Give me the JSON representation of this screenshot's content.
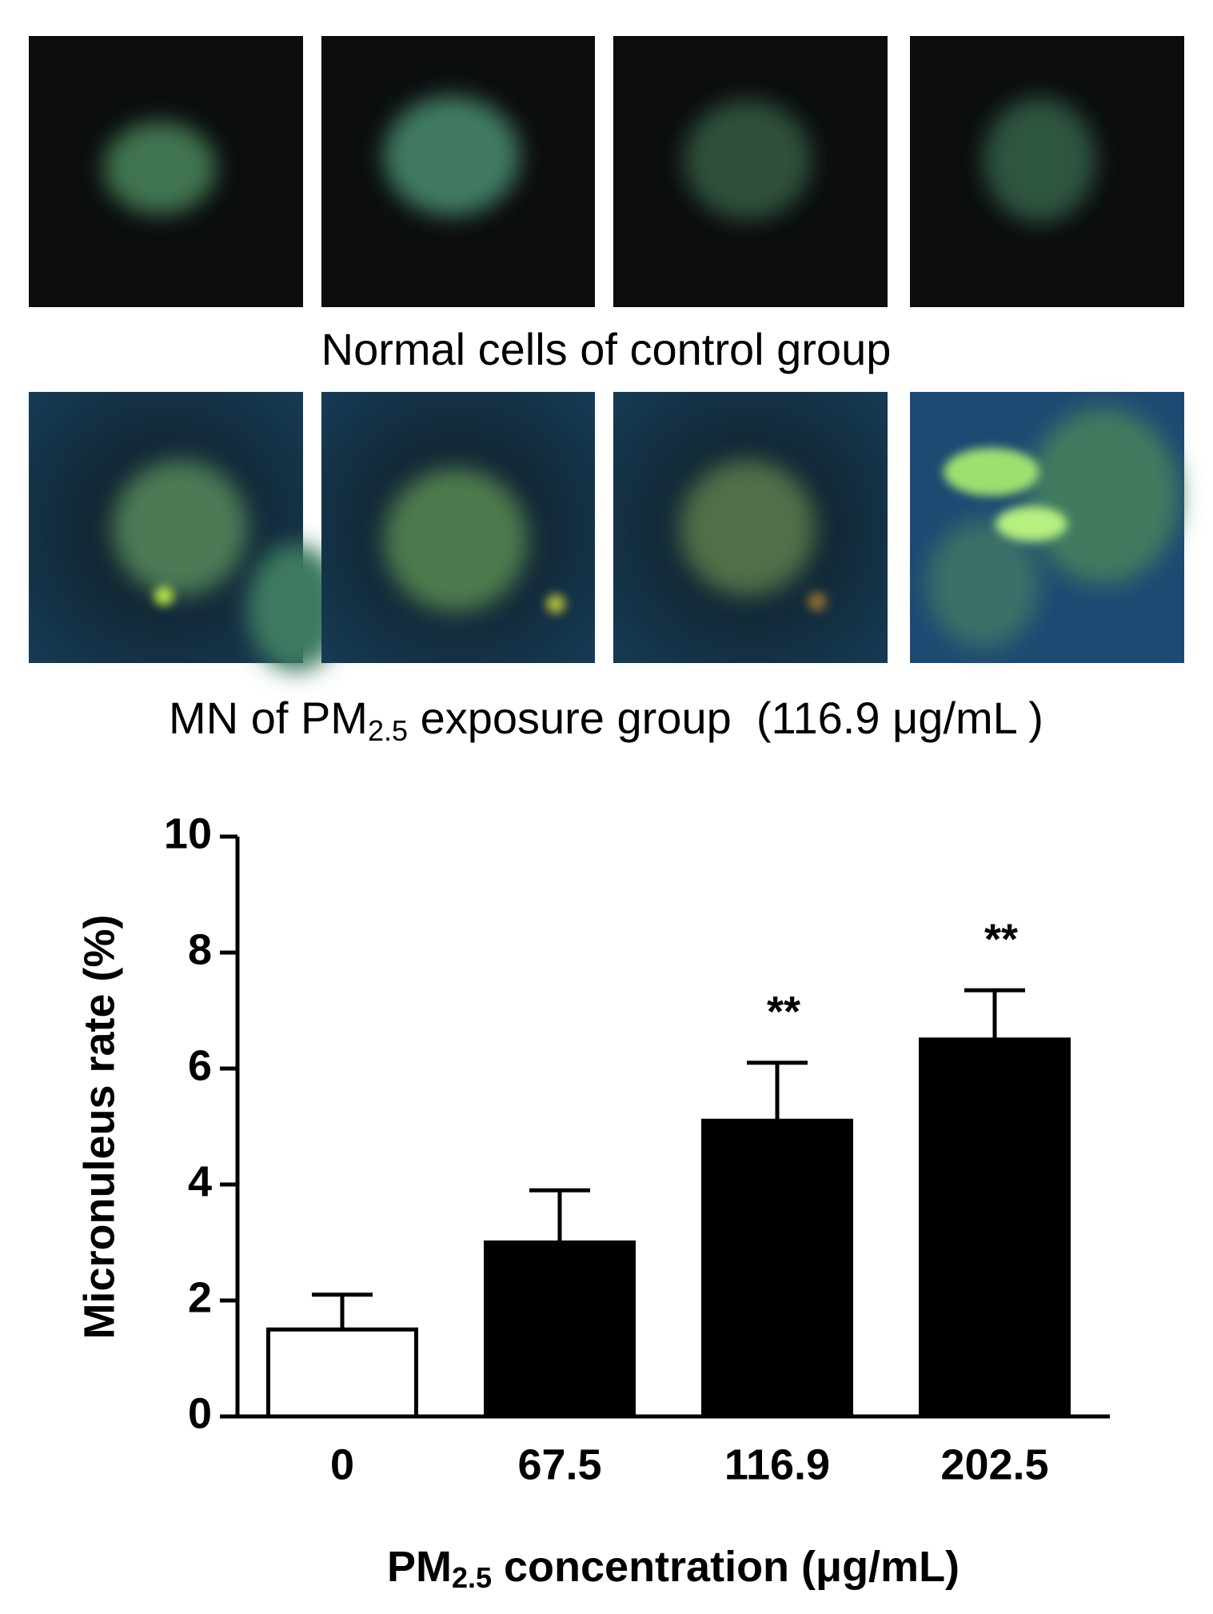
{
  "panels": {
    "control_caption": "Normal cells of control group",
    "exposure_caption": {
      "before": "MN of PM",
      "sub": "2.5",
      "after": " exposure group  (116.9 μg/mL )"
    }
  },
  "chart_data": {
    "type": "bar",
    "ylabel": "Micronuleus rate (%)",
    "xlabel": {
      "before": "PM",
      "sub": "2.5",
      "after": " concentration (μg/mL)"
    },
    "categories": [
      "0",
      "67.5",
      "116.9",
      "202.5"
    ],
    "series": [
      {
        "values": [
          1.5,
          3.0,
          5.1,
          6.5
        ],
        "errors": [
          0.6,
          0.9,
          1.0,
          0.85
        ],
        "colors": [
          "#ffffff",
          "#000000",
          "#000000",
          "#000000"
        ]
      }
    ],
    "annotations": [
      null,
      null,
      "**",
      "**"
    ],
    "ylim": [
      0,
      10
    ],
    "yticks": [
      0,
      2,
      4,
      6,
      8,
      10
    ]
  }
}
